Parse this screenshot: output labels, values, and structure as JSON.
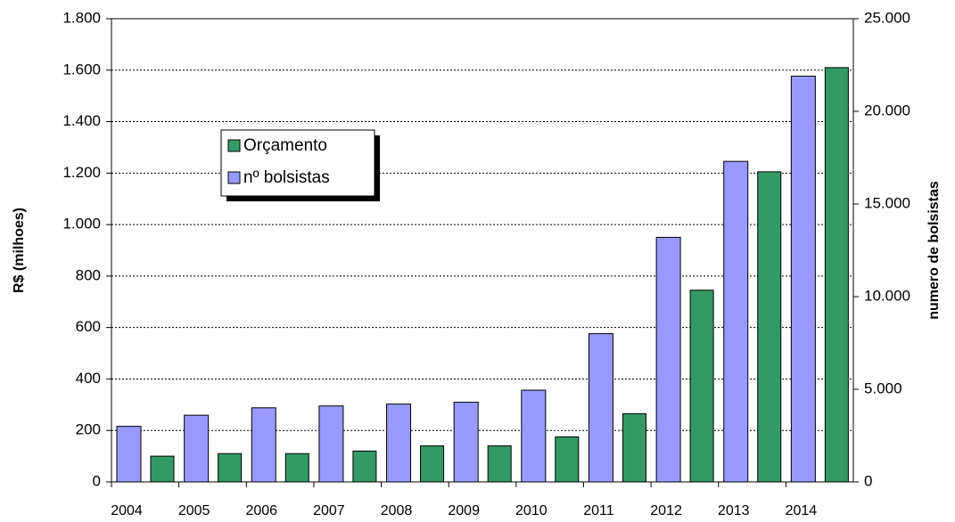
{
  "chart_data": {
    "type": "bar",
    "categories": [
      "2004",
      "2005",
      "2006",
      "2007",
      "2008",
      "2009",
      "2010",
      "2011",
      "2012",
      "2013",
      "2014"
    ],
    "series": [
      {
        "name": "Orçamento",
        "color": "#339966",
        "values": [
          100,
          110,
          110,
          120,
          140,
          140,
          175,
          265,
          745,
          1205,
          1610
        ]
      },
      {
        "name": "nº bolsistas",
        "color": "#9999ff",
        "axis": "y2",
        "values": [
          3000,
          3600,
          4000,
          4100,
          4200,
          4300,
          4950,
          8000,
          13200,
          17300,
          21900
        ]
      }
    ],
    "ylabel": "R$ (milhoes)",
    "y2label": "numero de bolsistas",
    "ylim": [
      0,
      1800
    ],
    "yticks": [
      0,
      200,
      400,
      600,
      800,
      {
        "value": 1000,
        "label": "1.000"
      },
      {
        "value": 1200,
        "label": "1.200"
      },
      {
        "value": 1400,
        "label": "1.400"
      },
      {
        "value": 1600,
        "label": "1.600"
      },
      {
        "value": 1800,
        "label": "1.800"
      }
    ],
    "y2lim": [
      0,
      25000
    ],
    "y2ticks": [
      0,
      {
        "value": 5000,
        "label": "5.000"
      },
      {
        "value": 10000,
        "label": "10.000"
      },
      {
        "value": 15000,
        "label": "15.000"
      },
      {
        "value": 20000,
        "label": "20.000"
      },
      {
        "value": 25000,
        "label": "25.000"
      }
    ],
    "grid": true
  }
}
